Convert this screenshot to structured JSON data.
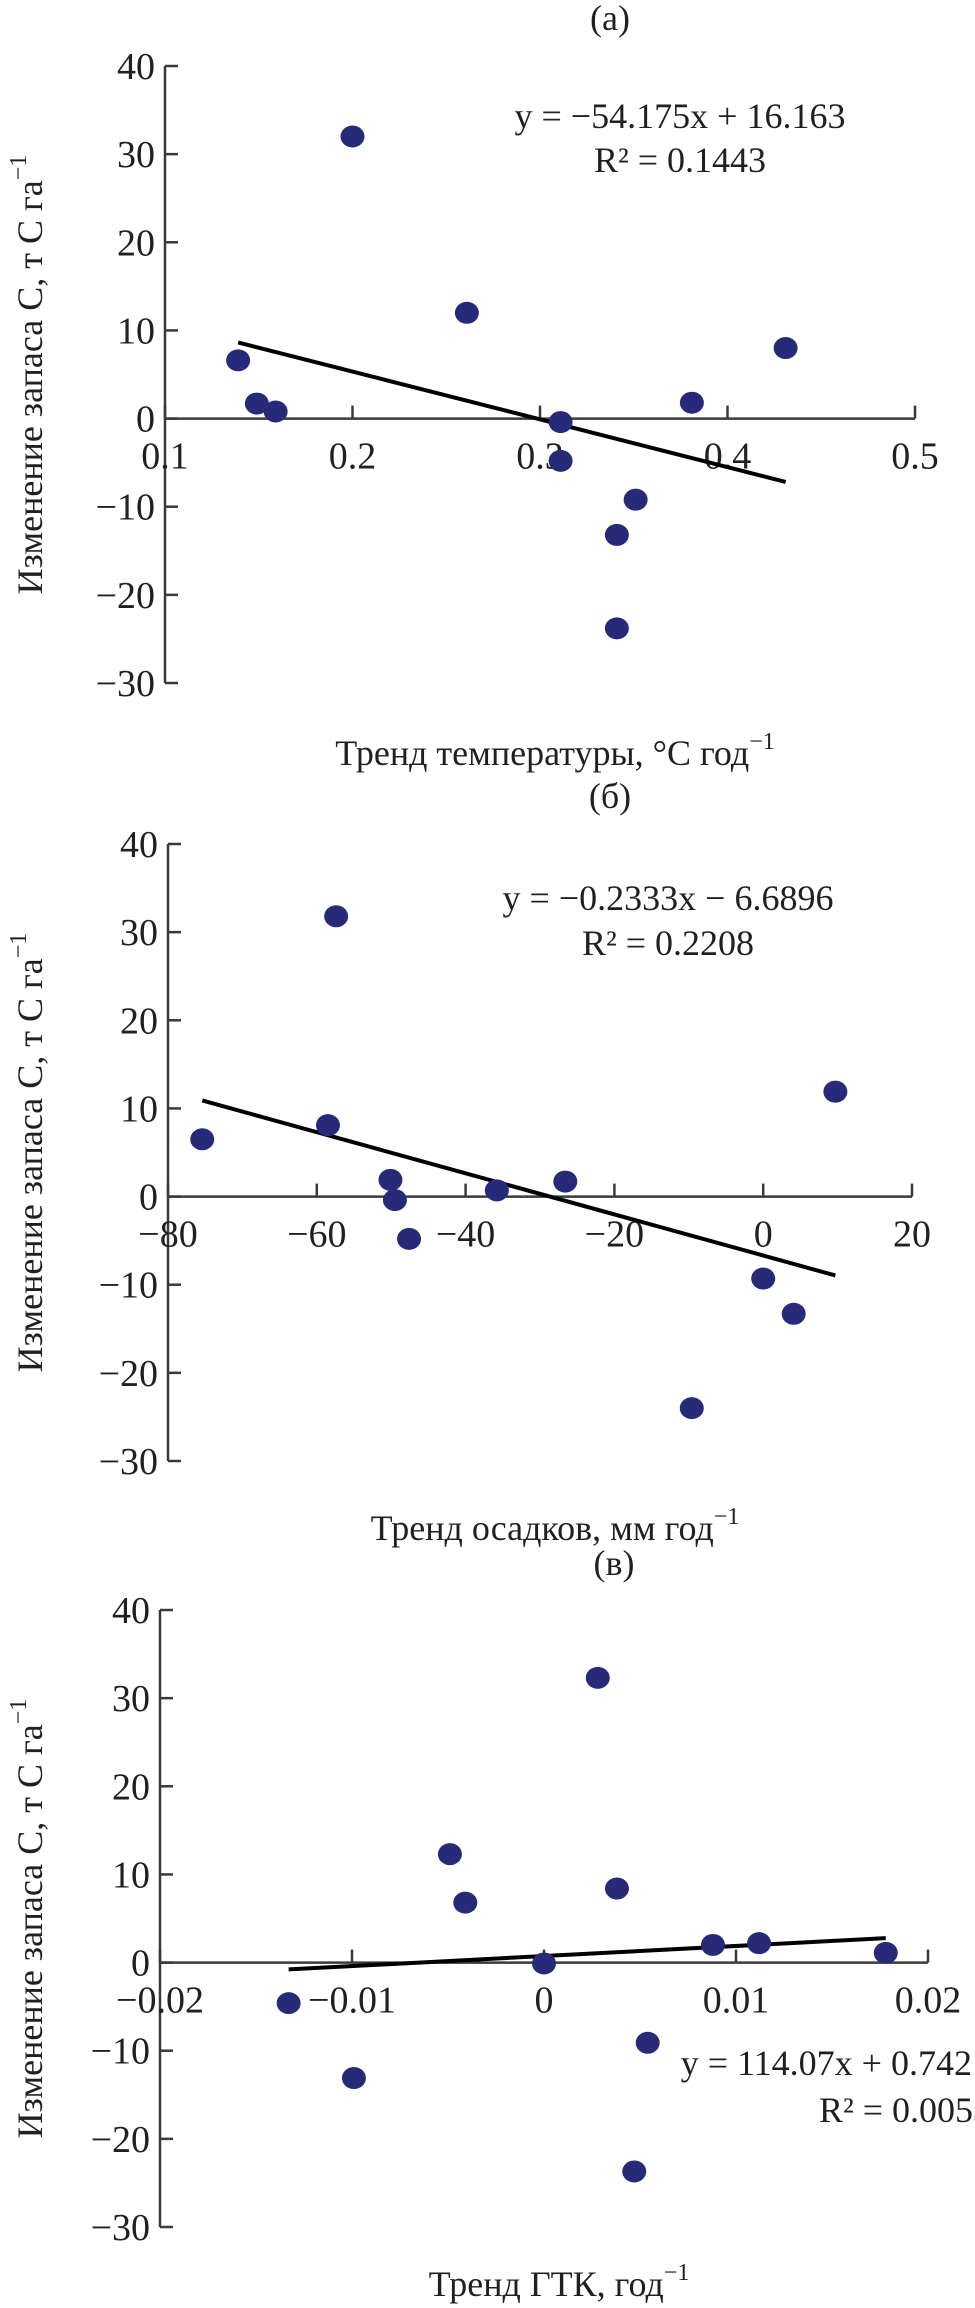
{
  "chart_data": [
    {
      "type": "scatter",
      "title": "(а)",
      "xlabel": "Тренд температуры, °С год",
      "xlabel_sup": "−1",
      "ylabel": "Изменение запаса С, т С га",
      "ylabel_sup": "−1",
      "xlim": [
        0.1,
        0.5
      ],
      "ylim": [
        -30,
        40
      ],
      "xticks": [
        0.1,
        0.2,
        0.3,
        0.4,
        0.5
      ],
      "xtick_labels": [
        "0.1",
        "0.2",
        "0.3",
        "0.4",
        "0.5"
      ],
      "yticks": [
        -30,
        -20,
        -10,
        0,
        10,
        20,
        30,
        40
      ],
      "ytick_labels": [
        "−30",
        "−20",
        "−10",
        "0",
        "10",
        "20",
        "30",
        "40"
      ],
      "grid": false,
      "point_color": "#262a78",
      "points": [
        {
          "x": 0.139,
          "y": 6.6
        },
        {
          "x": 0.149,
          "y": 1.7
        },
        {
          "x": 0.159,
          "y": 0.8
        },
        {
          "x": 0.2,
          "y": 32.0
        },
        {
          "x": 0.261,
          "y": 12.0
        },
        {
          "x": 0.311,
          "y": -0.4
        },
        {
          "x": 0.311,
          "y": -4.8
        },
        {
          "x": 0.351,
          "y": -9.2
        },
        {
          "x": 0.341,
          "y": -13.2
        },
        {
          "x": 0.341,
          "y": -23.8
        },
        {
          "x": 0.381,
          "y": 1.8
        },
        {
          "x": 0.431,
          "y": 8.0
        }
      ],
      "trendline": {
        "slope": -54.175,
        "intercept": 16.163,
        "x_range": [
          0.139,
          0.431
        ]
      },
      "equation": "y = −54.175x + 16.163",
      "r2_text": "R² = 0.1443"
    },
    {
      "type": "scatter",
      "title": "(б)",
      "xlabel": "Тренд осадков, мм год",
      "xlabel_sup": "−1",
      "ylabel": "Изменение запаса С, т С га",
      "ylabel_sup": "−1",
      "xlim": [
        -80,
        20
      ],
      "ylim": [
        -30,
        40
      ],
      "xticks": [
        -80,
        -60,
        -40,
        -20,
        0,
        20
      ],
      "xtick_labels": [
        "−80",
        "−60",
        "−40",
        "−20",
        "0",
        "20"
      ],
      "yticks": [
        -30,
        -20,
        -10,
        0,
        10,
        20,
        30,
        40
      ],
      "ytick_labels": [
        "−30",
        "−20",
        "−10",
        "0",
        "10",
        "20",
        "30",
        "40"
      ],
      "grid": false,
      "point_color": "#262a78",
      "points": [
        {
          "x": -75.4,
          "y": 6.5
        },
        {
          "x": -58.5,
          "y": 8.1
        },
        {
          "x": -57.4,
          "y": 31.8
        },
        {
          "x": -50.1,
          "y": 1.9
        },
        {
          "x": -49.5,
          "y": -0.4
        },
        {
          "x": -47.6,
          "y": -4.8
        },
        {
          "x": -35.8,
          "y": 0.7
        },
        {
          "x": -26.6,
          "y": 1.7
        },
        {
          "x": -9.6,
          "y": -24.0
        },
        {
          "x": 0.0,
          "y": -9.3
        },
        {
          "x": 4.1,
          "y": -13.3
        },
        {
          "x": 9.7,
          "y": 11.9
        }
      ],
      "trendline": {
        "slope": -0.2333,
        "intercept": -6.6896,
        "x_range": [
          -75.4,
          9.7
        ]
      },
      "equation": "y = −0.2333x − 6.6896",
      "r2_text": "R² = 0.2208"
    },
    {
      "type": "scatter",
      "title": "(в)",
      "xlabel": "Тренд ГТК, год",
      "xlabel_sup": "−1",
      "ylabel": "Изменение запаса С, т С га",
      "ylabel_sup": "−1",
      "xlim": [
        -0.02,
        0.02
      ],
      "ylim": [
        -30,
        40
      ],
      "xticks": [
        -0.02,
        -0.01,
        0,
        0.01,
        0.02
      ],
      "xtick_labels": [
        "−0.02",
        "−0.01",
        "0",
        "0.01",
        "0.02"
      ],
      "yticks": [
        -30,
        -20,
        -10,
        0,
        10,
        20,
        30,
        40
      ],
      "ytick_labels": [
        "−30",
        "−20",
        "−10",
        "0",
        "10",
        "20",
        "30",
        "40"
      ],
      "grid": false,
      "point_color": "#262a78",
      "points": [
        {
          "x": -0.0133,
          "y": -4.6
        },
        {
          "x": -0.0099,
          "y": -13.1
        },
        {
          "x": -0.0049,
          "y": 12.3
        },
        {
          "x": -0.0041,
          "y": 6.8
        },
        {
          "x": 0.0,
          "y": -0.1
        },
        {
          "x": 0.0028,
          "y": 32.3
        },
        {
          "x": 0.0038,
          "y": 8.4
        },
        {
          "x": 0.0047,
          "y": -23.7
        },
        {
          "x": 0.0054,
          "y": -9.1
        },
        {
          "x": 0.0088,
          "y": 2.0
        },
        {
          "x": 0.0112,
          "y": 2.2
        },
        {
          "x": 0.0178,
          "y": 1.1
        }
      ],
      "trendline": {
        "slope": 114.07,
        "intercept": 0.742,
        "x_range": [
          -0.0133,
          0.0178
        ]
      },
      "equation": "y = 114.07x + 0.742",
      "r2_text": "R² = 0.0053"
    }
  ]
}
